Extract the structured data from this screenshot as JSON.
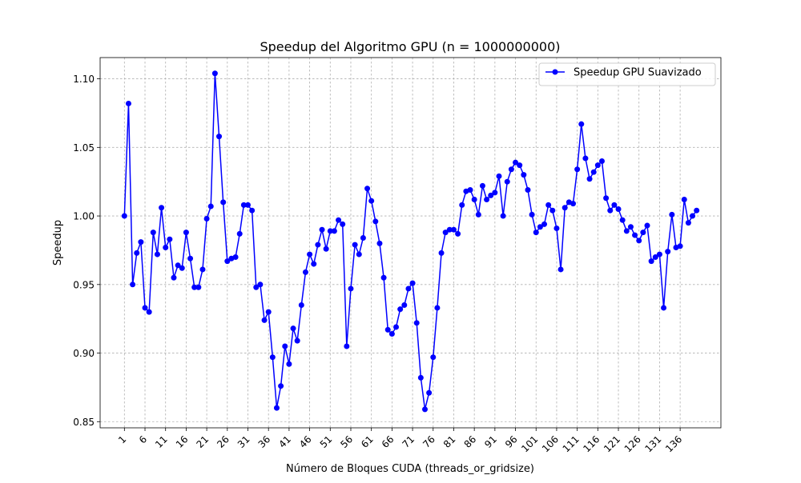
{
  "chart_data": {
    "type": "line",
    "title": "Speedup del Algoritmo GPU (n = 1000000000)",
    "xlabel": "Número de Bloques CUDA (threads_or_gridsize)",
    "ylabel": "Speedup",
    "xlim": [
      -4.9,
      145.9
    ],
    "ylim": [
      0.8455,
      1.1155
    ],
    "x_ticks": [
      1,
      6,
      11,
      16,
      21,
      26,
      31,
      36,
      41,
      46,
      51,
      56,
      61,
      66,
      71,
      76,
      81,
      86,
      91,
      96,
      101,
      106,
      111,
      116,
      121,
      126,
      131,
      136
    ],
    "y_ticks": [
      0.85,
      0.9,
      0.95,
      1.0,
      1.05,
      1.1
    ],
    "y_tick_labels": [
      "0.85",
      "0.90",
      "0.95",
      "1.00",
      "1.05",
      "1.10"
    ],
    "grid": true,
    "legend_position": "top-right",
    "series": [
      {
        "name": "Speedup GPU Suavizado",
        "color": "#0000ff",
        "marker": "circle",
        "x_start": 1,
        "values": [
          1.0,
          1.082,
          0.95,
          0.973,
          0.981,
          0.933,
          0.93,
          0.988,
          0.972,
          1.006,
          0.977,
          0.983,
          0.955,
          0.964,
          0.962,
          0.988,
          0.969,
          0.948,
          0.948,
          0.961,
          0.998,
          1.007,
          1.104,
          1.058,
          1.01,
          0.967,
          0.969,
          0.97,
          0.987,
          1.008,
          1.008,
          1.004,
          0.948,
          0.95,
          0.924,
          0.93,
          0.897,
          0.86,
          0.876,
          0.905,
          0.892,
          0.918,
          0.909,
          0.935,
          0.959,
          0.972,
          0.965,
          0.979,
          0.99,
          0.976,
          0.989,
          0.989,
          0.997,
          0.994,
          0.905,
          0.947,
          0.979,
          0.972,
          0.984,
          1.02,
          1.011,
          0.996,
          0.98,
          0.955,
          0.917,
          0.914,
          0.919,
          0.932,
          0.935,
          0.947,
          0.951,
          0.922,
          0.882,
          0.859,
          0.871,
          0.897,
          0.933,
          0.973,
          0.988,
          0.99,
          0.99,
          0.987,
          1.008,
          1.018,
          1.019,
          1.012,
          1.001,
          1.022,
          1.012,
          1.015,
          1.017,
          1.029,
          1.0,
          1.025,
          1.034,
          1.039,
          1.037,
          1.03,
          1.019,
          1.001,
          0.988,
          0.992,
          0.994,
          1.008,
          1.004,
          0.991,
          0.961,
          1.006,
          1.01,
          1.009,
          1.034,
          1.067,
          1.042,
          1.027,
          1.032,
          1.037,
          1.04,
          1.013,
          1.004,
          1.008,
          1.005,
          0.997,
          0.989,
          0.992,
          0.986,
          0.982,
          0.988,
          0.993,
          0.967,
          0.97,
          0.972,
          0.933,
          0.974,
          1.001,
          0.977,
          0.978,
          1.012,
          0.995,
          1.0,
          1.004
        ]
      }
    ]
  }
}
